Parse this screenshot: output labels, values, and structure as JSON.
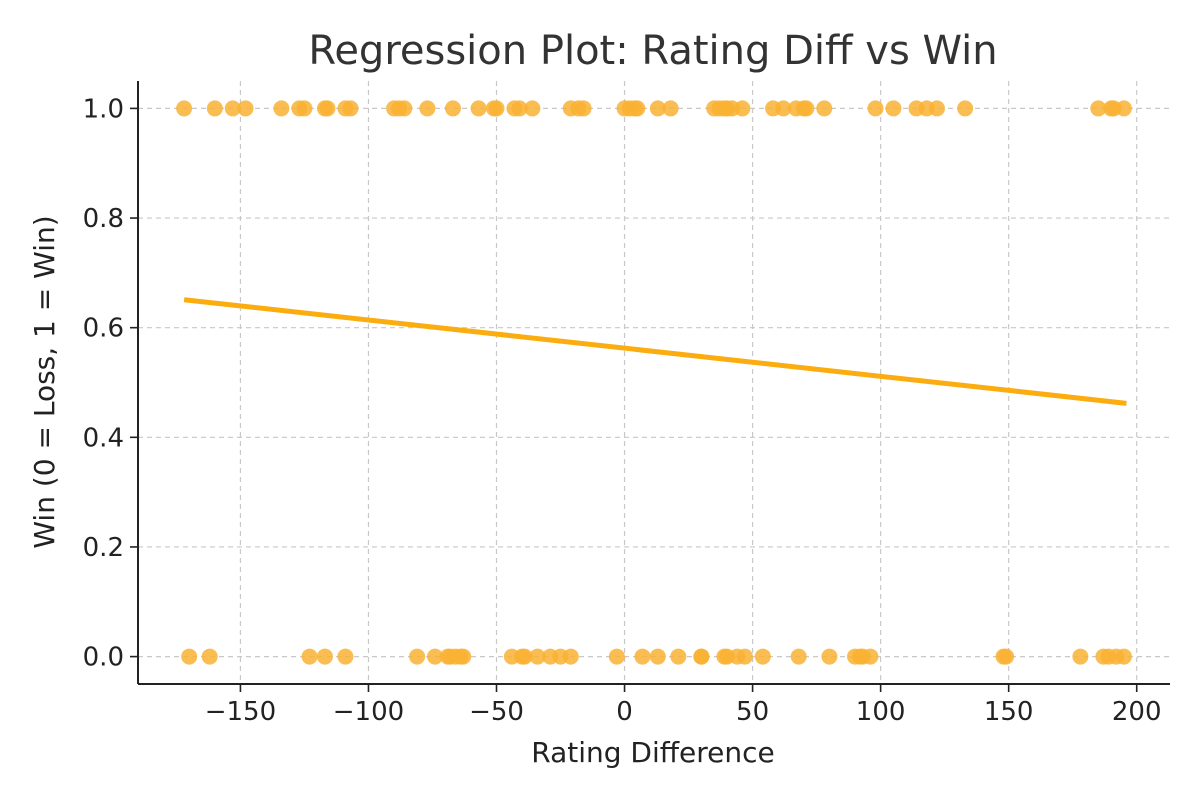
{
  "chart_data": {
    "type": "scatter",
    "title": "Regression Plot: Rating Diff vs Win",
    "xlabel": "Rating Difference",
    "ylabel": "Win (0 = Loss, 1 = Win)",
    "xlim": [
      -190,
      213
    ],
    "ylim": [
      -0.05,
      1.05
    ],
    "x_ticks": [
      -150,
      -100,
      -50,
      0,
      50,
      100,
      150,
      200
    ],
    "x_tick_labels": [
      "−150",
      "−100",
      "−50",
      "0",
      "50",
      "100",
      "150",
      "200"
    ],
    "y_ticks": [
      0.0,
      0.2,
      0.4,
      0.6,
      0.8,
      1.0
    ],
    "y_tick_labels": [
      "0.0",
      "0.2",
      "0.4",
      "0.6",
      "0.8",
      "1.0"
    ],
    "grid": true,
    "point_color": "#f9b233",
    "line_color": "#fbad0f",
    "series": [
      {
        "values_y": 1,
        "x": [
          -172,
          -160,
          -153,
          -148,
          -134,
          -127,
          -125,
          -117,
          -116,
          -109,
          -107,
          -90,
          -88,
          -86,
          -77,
          -67,
          -57,
          -51,
          -50,
          -43,
          -41,
          -36,
          -21,
          -18,
          -16,
          0,
          2,
          4,
          5,
          13,
          18,
          35,
          37,
          39,
          40,
          42,
          46,
          58,
          62,
          67,
          70,
          71,
          78,
          98,
          105,
          114,
          118,
          122,
          133,
          185,
          190,
          191,
          195
        ]
      },
      {
        "values_y": 0,
        "x": [
          -170,
          -162,
          -123,
          -117,
          -109,
          -81,
          -74,
          -69,
          -68,
          -66,
          -64,
          -63,
          -44,
          -40,
          -39,
          -34,
          -29,
          -25,
          -21,
          -3,
          7,
          13,
          21,
          30,
          30,
          39,
          40,
          44,
          47,
          54,
          68,
          80,
          90,
          92,
          93,
          96,
          148,
          149,
          178,
          187,
          189,
          192,
          195
        ]
      }
    ],
    "regression_line": {
      "x": [
        -172,
        196
      ],
      "y": [
        0.651,
        0.462
      ]
    }
  }
}
